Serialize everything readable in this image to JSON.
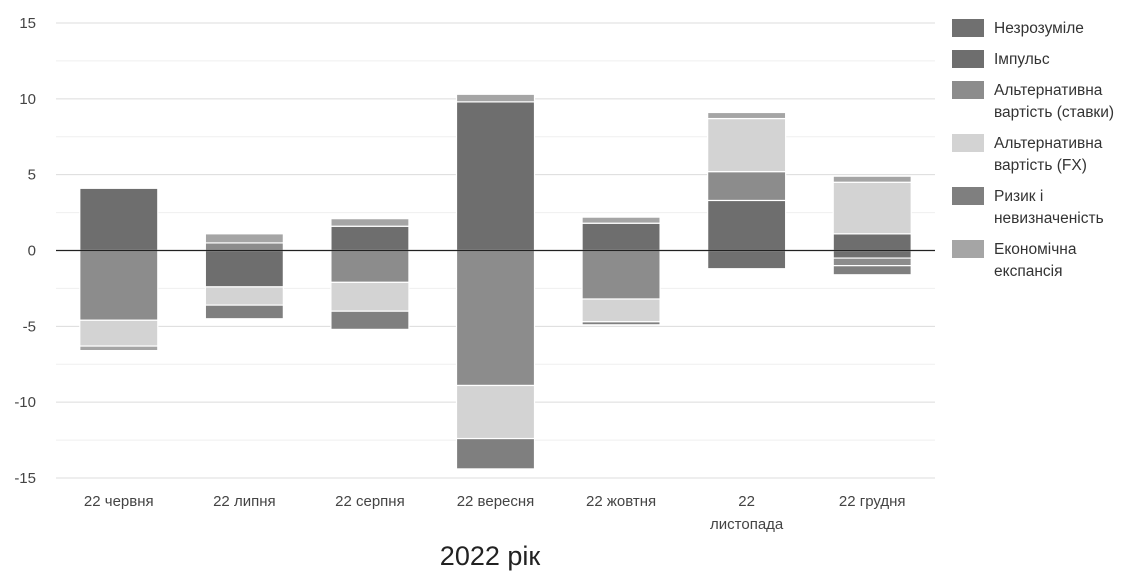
{
  "chart_data": {
    "type": "bar",
    "stacked": true,
    "diverging": true,
    "xlabel": "2022 рік",
    "ylabel": "",
    "ylim": [
      -15,
      15
    ],
    "yticks": [
      15,
      10,
      5,
      0,
      -5,
      -10,
      -15
    ],
    "grid": true,
    "legend_position": "right",
    "categories": [
      [
        "22 червня"
      ],
      [
        "22 липня"
      ],
      [
        "22 серпня"
      ],
      [
        "22 вересня"
      ],
      [
        "22 жовтня"
      ],
      [
        "22",
        "листопада"
      ],
      [
        "22 грудня"
      ]
    ],
    "series": [
      {
        "name": "Незрозуміле",
        "label_lines": [
          "Незрозуміле"
        ],
        "color": "#707070",
        "values": [
          0.0,
          0.0,
          0.0,
          0.0,
          0.0,
          -1.2,
          -0.5
        ]
      },
      {
        "name": "Імпульс",
        "label_lines": [
          "Імпульс"
        ],
        "color": "#6e6e6e",
        "values": [
          4.1,
          -2.4,
          1.6,
          9.8,
          1.8,
          3.3,
          1.1
        ]
      },
      {
        "name": "Альтернативна вартість (ставки)",
        "label_lines": [
          "Альтернативна",
          "вартість (ставки)"
        ],
        "color": "#8c8c8c",
        "values": [
          -4.6,
          0.5,
          -2.1,
          -8.9,
          -3.2,
          1.9,
          -0.5
        ]
      },
      {
        "name": "Альтернативна вартість (FX)",
        "label_lines": [
          "Альтернативна",
          "вартість (FX)"
        ],
        "color": "#d3d3d3",
        "values": [
          -1.7,
          -1.2,
          -1.9,
          -3.5,
          -1.5,
          3.5,
          3.4
        ]
      },
      {
        "name": "Ризик і невизначеність",
        "label_lines": [
          "Ризик і",
          "невизначеність"
        ],
        "color": "#7f7f7f",
        "values": [
          0.0,
          -0.9,
          -1.2,
          -2.0,
          -0.2,
          0.0,
          -0.6
        ]
      },
      {
        "name": "Економічна експансія",
        "label_lines": [
          "Економічна",
          "експансія"
        ],
        "color": "#a5a5a5",
        "values": [
          -0.3,
          0.6,
          0.5,
          0.5,
          0.4,
          0.4,
          0.4
        ]
      }
    ]
  }
}
